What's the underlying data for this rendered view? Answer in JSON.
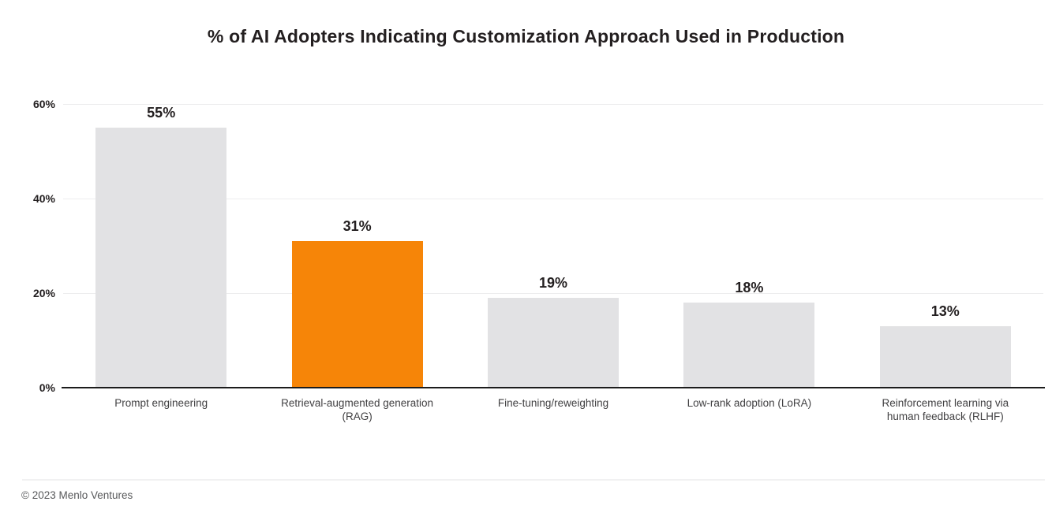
{
  "chart_data": {
    "type": "bar",
    "title": "% of AI Adopters Indicating Customization Approach Used in Production",
    "categories": [
      "Prompt engineering",
      "Retrieval-augmented generation (RAG)",
      "Fine-tuning/reweighting",
      "Low-rank adoption (LoRA)",
      "Reinforcement learning via human feedback (RLHF)"
    ],
    "values": [
      55,
      31,
      19,
      18,
      13
    ],
    "value_labels": [
      "55%",
      "31%",
      "19%",
      "18%",
      "13%"
    ],
    "highlight_index": 1,
    "bar_color_default": "#e2e2e4",
    "bar_color_highlight": "#f68508",
    "xlabel": "",
    "ylabel": "",
    "ylim": [
      0,
      60
    ],
    "yticks": [
      "0%",
      "20%",
      "40%",
      "60%"
    ],
    "ytick_values": [
      0,
      20,
      40,
      60
    ],
    "grid": "horizontal",
    "legend": "none",
    "source": "© 2023 Menlo Ventures"
  }
}
